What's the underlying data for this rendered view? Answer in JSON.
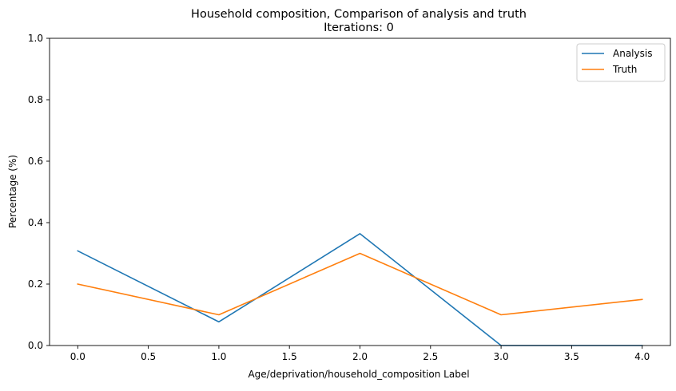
{
  "chart_data": {
    "type": "line",
    "title": "Household composition, Comparison of analysis and truth",
    "subtitle": "Iterations: 0",
    "xlabel": "Age/deprivation/household_composition Label",
    "ylabel": "Percentage (%)",
    "xlim": [
      -0.2,
      4.2
    ],
    "ylim": [
      0.0,
      1.0
    ],
    "xticks": [
      0.0,
      0.5,
      1.0,
      1.5,
      2.0,
      2.5,
      3.0,
      3.5,
      4.0
    ],
    "xtick_labels": [
      "0.0",
      "0.5",
      "1.0",
      "1.5",
      "2.0",
      "2.5",
      "3.0",
      "3.5",
      "4.0"
    ],
    "yticks": [
      0.0,
      0.2,
      0.4,
      0.6,
      0.8,
      1.0
    ],
    "ytick_labels": [
      "0.0",
      "0.2",
      "0.4",
      "0.6",
      "0.8",
      "1.0"
    ],
    "grid": false,
    "legend_position": "top-right",
    "x": [
      0,
      1,
      2,
      3,
      4
    ],
    "series": [
      {
        "name": "Analysis",
        "color": "#1f77b4",
        "values": [
          0.308,
          0.077,
          0.364,
          0.0,
          0.0
        ]
      },
      {
        "name": "Truth",
        "color": "#ff7f0e",
        "values": [
          0.2,
          0.1,
          0.3,
          0.1,
          0.15
        ]
      }
    ]
  }
}
